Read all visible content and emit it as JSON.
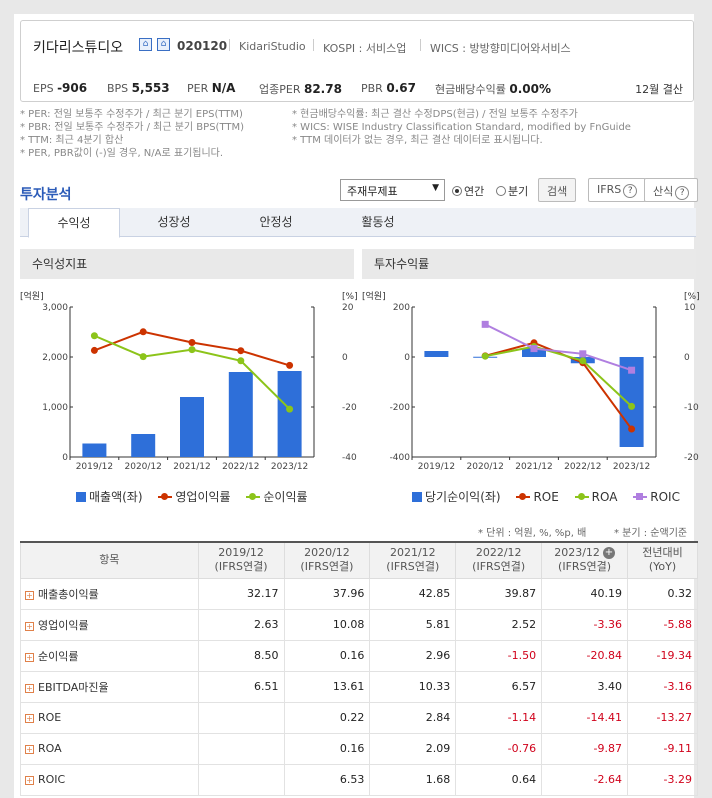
{
  "company": {
    "name": "키다리스튜디오",
    "code": "020120",
    "eng_name": "KidariStudio",
    "market": "KOSPI : 서비스업",
    "wics": "WICS : 방방향미디어와서비스"
  },
  "metrics": [
    {
      "label": "EPS",
      "value": "-906"
    },
    {
      "label": "BPS",
      "value": "5,553"
    },
    {
      "label": "PER",
      "value": "N/A"
    },
    {
      "label": "업종PER",
      "value": "82.78"
    },
    {
      "label": "PBR",
      "value": "0.67"
    },
    {
      "label": "현금배당수익률",
      "value": "0.00%"
    }
  ],
  "settlement": "12월 결산",
  "notes_left": [
    "* PER: 전일 보통주 수정주가 / 최근 분기 EPS(TTM)",
    "* PBR: 전일 보통주 수정주가 / 최근 분기 BPS(TTM)",
    "* TTM: 최근 4분기 합산",
    "* PER, PBR값이 (-)일 경우, N/A로 표기됩니다."
  ],
  "notes_right": [
    "* 현금배당수익률: 최근 결산 수정DPS(현금) / 전일 보통주 수정주가",
    "* WICS: WISE Industry Classification Standard, modified by FnGuide",
    "* TTM 데이터가 없는 경우, 최근 결산 데이터로 표시됩니다."
  ],
  "section_title": "투자분석",
  "controls": {
    "select_value": "주재무제표",
    "radio_annual": "연간",
    "radio_quarter": "분기",
    "search": "검색",
    "ifrs": "IFRS",
    "formula": "산식"
  },
  "tabs": [
    "수익성",
    "성장성",
    "안정성",
    "활동성"
  ],
  "panels": {
    "left_title": "수익성지표",
    "right_title": "투자수익률"
  },
  "colors": {
    "bar": "#2e6fd9",
    "red": "#cc3300",
    "green": "#8cc41a",
    "purple": "#b07fe0"
  },
  "chart_data": [
    {
      "type": "bar",
      "categories": [
        "2019/12",
        "2020/12",
        "2021/12",
        "2022/12",
        "2023/12"
      ],
      "y_left_label": "[억원]",
      "y_right_label": "[%]",
      "y_left_ticks": [
        "3,000",
        "2,000",
        "1,000",
        "0"
      ],
      "y_right_ticks": [
        "20",
        "0",
        "-20",
        "-40"
      ],
      "ylim_left": [
        0,
        3000
      ],
      "ylim_right": [
        -40,
        20
      ],
      "series": [
        {
          "name": "매출액(좌)",
          "type": "bar",
          "values": [
            270,
            460,
            1200,
            1700,
            1720
          ]
        },
        {
          "name": "영업이익률",
          "type": "line",
          "values": [
            2.63,
            10.08,
            5.81,
            2.52,
            -3.36
          ]
        },
        {
          "name": "순이익률",
          "type": "line",
          "values": [
            8.5,
            0.16,
            2.96,
            -1.5,
            -20.84
          ]
        }
      ]
    },
    {
      "type": "bar",
      "categories": [
        "2019/12",
        "2020/12",
        "2021/12",
        "2022/12",
        "2023/12"
      ],
      "y_left_label": "[억원]",
      "y_right_label": "[%]",
      "y_left_ticks": [
        "200",
        "0",
        "-200",
        "-400"
      ],
      "y_right_ticks": [
        "10",
        "0",
        "-10",
        "-20"
      ],
      "ylim_left": [
        -400,
        200
      ],
      "ylim_right": [
        -20,
        10
      ],
      "series": [
        {
          "name": "당기순이익(좌)",
          "type": "bar",
          "values": [
            24,
            1,
            35,
            -25,
            -360
          ]
        },
        {
          "name": "ROE",
          "type": "line",
          "values": [
            null,
            0.22,
            2.84,
            -1.14,
            -14.41
          ]
        },
        {
          "name": "ROA",
          "type": "line",
          "values": [
            null,
            0.16,
            2.09,
            -0.76,
            -9.87
          ]
        },
        {
          "name": "ROIC",
          "type": "line",
          "values": [
            null,
            6.53,
            1.68,
            0.64,
            -2.64
          ]
        }
      ]
    }
  ],
  "unit_text": "* 단위 : 억원, %, %p, 배",
  "quarter_text": "* 분기 : 순액기준",
  "table": {
    "header_item": "항목",
    "columns": [
      {
        "year": "2019/12",
        "sub": "(IFRS연결)"
      },
      {
        "year": "2020/12",
        "sub": "(IFRS연결)"
      },
      {
        "year": "2021/12",
        "sub": "(IFRS연결)"
      },
      {
        "year": "2022/12",
        "sub": "(IFRS연결)"
      },
      {
        "year": "2023/12",
        "sub": "(IFRS연결)"
      },
      {
        "year": "전년대비",
        "sub": "(YoY)"
      }
    ],
    "rows": [
      {
        "label": "매출총이익률",
        "values": [
          "32.17",
          "37.96",
          "42.85",
          "39.87",
          "40.19",
          "0.32"
        ]
      },
      {
        "label": "영업이익률",
        "values": [
          "2.63",
          "10.08",
          "5.81",
          "2.52",
          "-3.36",
          "-5.88"
        ]
      },
      {
        "label": "순이익률",
        "values": [
          "8.50",
          "0.16",
          "2.96",
          "-1.50",
          "-20.84",
          "-19.34"
        ]
      },
      {
        "label": "EBITDA마진율",
        "values": [
          "6.51",
          "13.61",
          "10.33",
          "6.57",
          "3.40",
          "-3.16"
        ]
      },
      {
        "label": "ROE",
        "values": [
          "",
          "0.22",
          "2.84",
          "-1.14",
          "-14.41",
          "-13.27"
        ]
      },
      {
        "label": "ROA",
        "values": [
          "",
          "0.16",
          "2.09",
          "-0.76",
          "-9.87",
          "-9.11"
        ]
      },
      {
        "label": "ROIC",
        "values": [
          "",
          "6.53",
          "1.68",
          "0.64",
          "-2.64",
          "-3.29"
        ]
      }
    ]
  }
}
